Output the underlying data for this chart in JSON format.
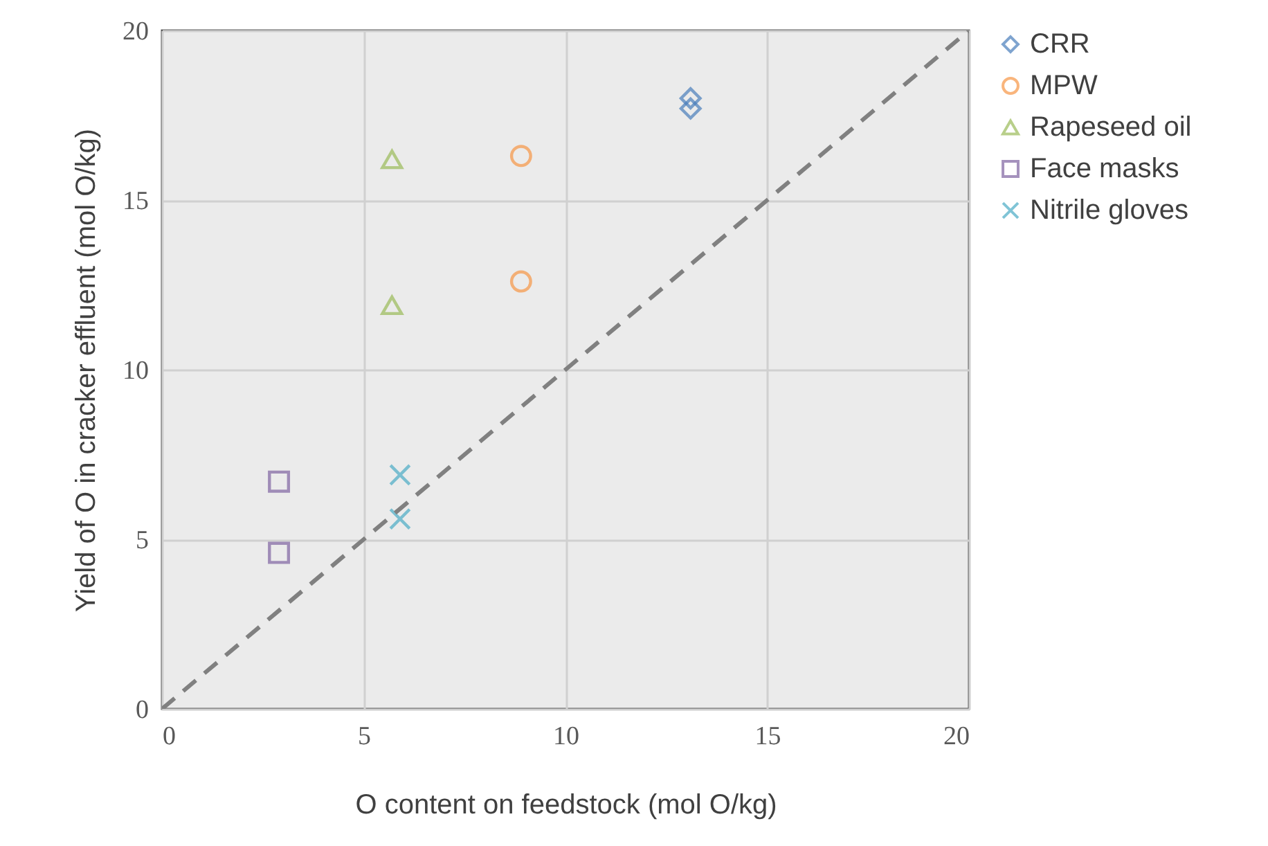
{
  "chart_data": {
    "type": "scatter",
    "xlabel": "O content on feedstock (mol O/kg)",
    "ylabel": "Yield of O in cracker effluent (mol O/kg)",
    "xlim": [
      0,
      20
    ],
    "ylim": [
      0,
      20
    ],
    "xticks": [
      0,
      5,
      10,
      15,
      20
    ],
    "yticks": [
      0,
      5,
      10,
      15,
      20
    ],
    "grid": true,
    "legend": "right",
    "series": [
      {
        "name": "CRR",
        "color": "#4a7ebb",
        "marker": "diamond",
        "x": [
          13.1,
          13.1
        ],
        "values": [
          18.0,
          17.7
        ]
      },
      {
        "name": "MPW",
        "color": "#f79646",
        "marker": "circle",
        "x": [
          8.9,
          8.9
        ],
        "values": [
          16.3,
          12.6
        ]
      },
      {
        "name": "Rapeseed oil",
        "color": "#9bbb59",
        "marker": "triangle",
        "x": [
          5.7,
          5.7
        ],
        "values": [
          16.2,
          11.9
        ]
      },
      {
        "name": "Face masks",
        "color": "#8064a2",
        "marker": "square",
        "x": [
          2.9,
          2.9
        ],
        "values": [
          6.7,
          4.6
        ]
      },
      {
        "name": "Nitrile gloves",
        "color": "#4bacc6",
        "marker": "cross",
        "x": [
          5.9,
          5.9
        ],
        "values": [
          6.9,
          5.6
        ]
      },
      {
        "type": "line",
        "color": "#808080",
        "line_style": "dashed",
        "x": [
          0,
          20
        ],
        "values": [
          0,
          20
        ]
      }
    ]
  }
}
